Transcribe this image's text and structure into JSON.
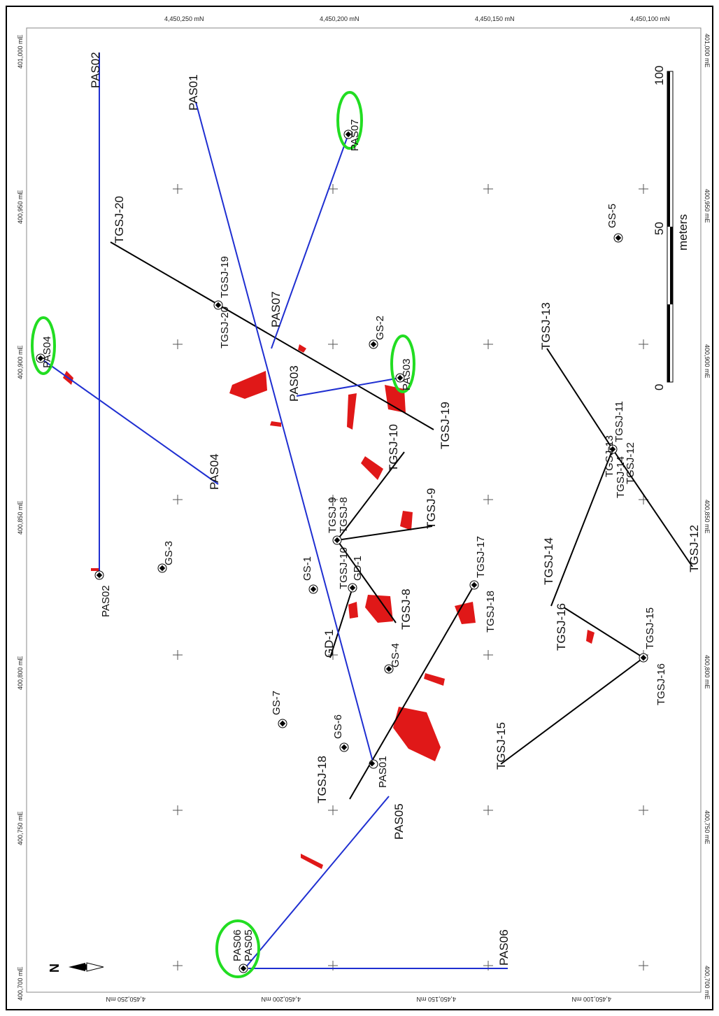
{
  "coord_labels": {
    "top": [
      "4,450,250 mN",
      "4,450,200 mN",
      "4,450,150 mN",
      "4,450,100 mN"
    ],
    "bottom": [
      "4,450,250 mN",
      "4,450,200 mN",
      "4,450,150 mN",
      "4,450,100 mN"
    ],
    "left": [
      "401,000 mE",
      "400,950 mE",
      "400,900 mE",
      "400,850 mE",
      "400,800 mE",
      "400,750 mE",
      "400,700 mE"
    ],
    "right": [
      "401,000 mE",
      "400,950 mE",
      "400,900 mE",
      "400,850 mE",
      "400,800 mE",
      "400,750 mE",
      "400,700 mE"
    ]
  },
  "scale_bar": {
    "ticks": [
      "0",
      "50",
      "100"
    ],
    "unit": "meters"
  },
  "north_arrow": {
    "label": "N"
  },
  "colors": {
    "pas_line": "#1f2fd1",
    "tgsj_line": "#000000",
    "anomaly": "#e01818",
    "highlight": "#22dd22"
  },
  "collars": [
    "PAS02",
    "PAS01",
    "PAS07",
    "PAS04",
    "PAS03",
    "PAS06",
    "PAS05",
    "GS-3",
    "GS-1",
    "GS-2",
    "GS-4",
    "GS-5",
    "GS-6",
    "GS-7",
    "GD-1",
    "TGSJ-19",
    "TGSJ-20",
    "TGSJ-9",
    "TGSJ-8",
    "TGSJ-10",
    "TGSJ-17",
    "TGSJ-18",
    "TGSJ-11",
    "TGSJ-12",
    "TGSJ-13",
    "TGSJ-14",
    "TGSJ-15",
    "TGSJ-16"
  ],
  "line_labels": {
    "pas02": "PAS02",
    "pas01": "PAS01",
    "pas07": "PAS07",
    "pas03": "PAS03",
    "pas04": "PAS04",
    "pas05": "PAS05",
    "pas06": "PAS06",
    "tgsj20": "TGSJ-20",
    "tgsj19": "TGSJ-19",
    "tgsj10": "TGSJ-10",
    "tgsj9": "TGSJ-9",
    "tgsj8": "TGSJ-8",
    "gd1": "GD-1",
    "tgsj17": "TGSJ-17",
    "tgsj18": "TGSJ-18",
    "tgsj15": "TGSJ-15",
    "tgsj16": "TGSJ-16",
    "tgsj14": "TGSJ-14",
    "tgsj13": "TGSJ-13",
    "tgsj12": "TGSJ-12"
  }
}
